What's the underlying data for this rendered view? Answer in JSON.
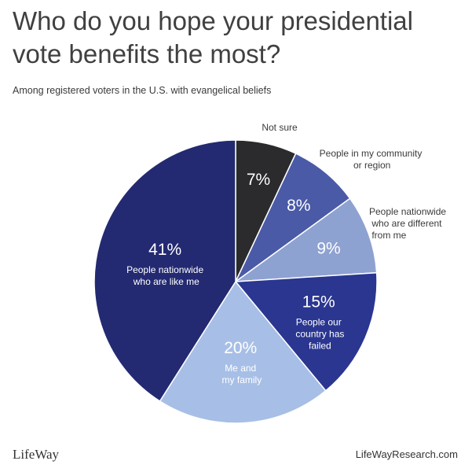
{
  "header": {
    "title": "Who do you hope your presidential vote benefits the most?",
    "subtitle": "Among registered voters in the U.S. with evangelical beliefs"
  },
  "footer": {
    "logo": "LifeWay",
    "site": "LifeWayResearch.com"
  },
  "chart_data": {
    "type": "pie",
    "start_angle_deg": 0,
    "direction": "clockwise",
    "slices": [
      {
        "label": "Not sure",
        "value": 7,
        "value_label": "7%",
        "color": "#2b2b2d",
        "label_position": "outside",
        "text_color": "#ffffff"
      },
      {
        "label": "People in my community or region",
        "value": 8,
        "value_label": "8%",
        "color": "#4a5aa7",
        "label_position": "outside",
        "text_color": "#ffffff"
      },
      {
        "label": "People nationwide who are different from me",
        "value": 9,
        "value_label": "9%",
        "color": "#8ea2d1",
        "label_position": "outside",
        "text_color": "#ffffff"
      },
      {
        "label": "People our country has failed",
        "value": 15,
        "value_label": "15%",
        "color": "#2a3690",
        "label_position": "inside",
        "text_color": "#ffffff"
      },
      {
        "label": "Me and my family",
        "value": 20,
        "value_label": "20%",
        "color": "#a7bfe6",
        "label_position": "inside",
        "text_color": "#ffffff"
      },
      {
        "label": "People nationwide who are like me",
        "value": 41,
        "value_label": "41%",
        "color": "#232a72",
        "label_position": "inside",
        "text_color": "#ffffff"
      }
    ]
  }
}
